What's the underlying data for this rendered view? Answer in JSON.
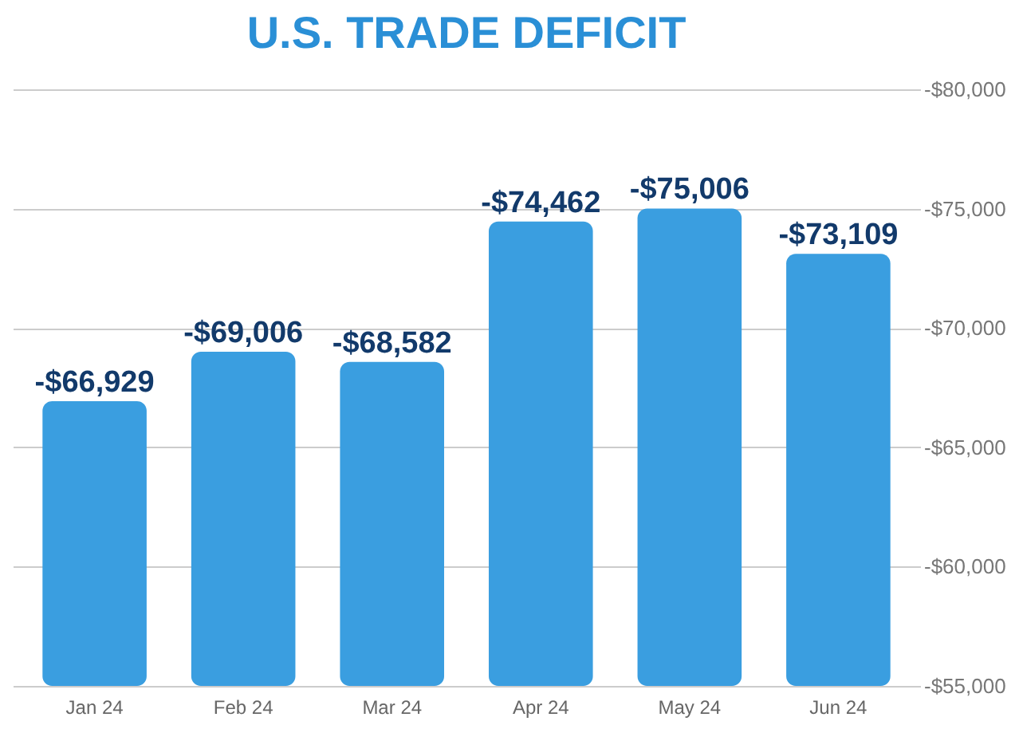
{
  "chart_data": {
    "type": "bar",
    "title": "U.S. TRADE DEFICIT",
    "categories": [
      "Jan 24",
      "Feb 24",
      "Mar 24",
      "Apr 24",
      "May 24",
      "Jun 24"
    ],
    "values": [
      -66929,
      -69006,
      -68582,
      -74462,
      -75006,
      -73109
    ],
    "value_labels": [
      "-$66,929",
      "-$69,006",
      "-$68,582",
      "-$74,462",
      "-$75,006",
      "-$73,109"
    ],
    "color": "#3a9ee0",
    "ylim": [
      -55000,
      -80000
    ],
    "yticks": [
      {
        "value": -55000,
        "label": "-$55,000"
      },
      {
        "value": -60000,
        "label": "-$60,000"
      },
      {
        "value": -65000,
        "label": "-$65,000"
      },
      {
        "value": -70000,
        "label": "-$70,000"
      },
      {
        "value": -75000,
        "label": "-$75,000"
      },
      {
        "value": -80000,
        "label": "-$80,000"
      }
    ],
    "grid": "y"
  }
}
